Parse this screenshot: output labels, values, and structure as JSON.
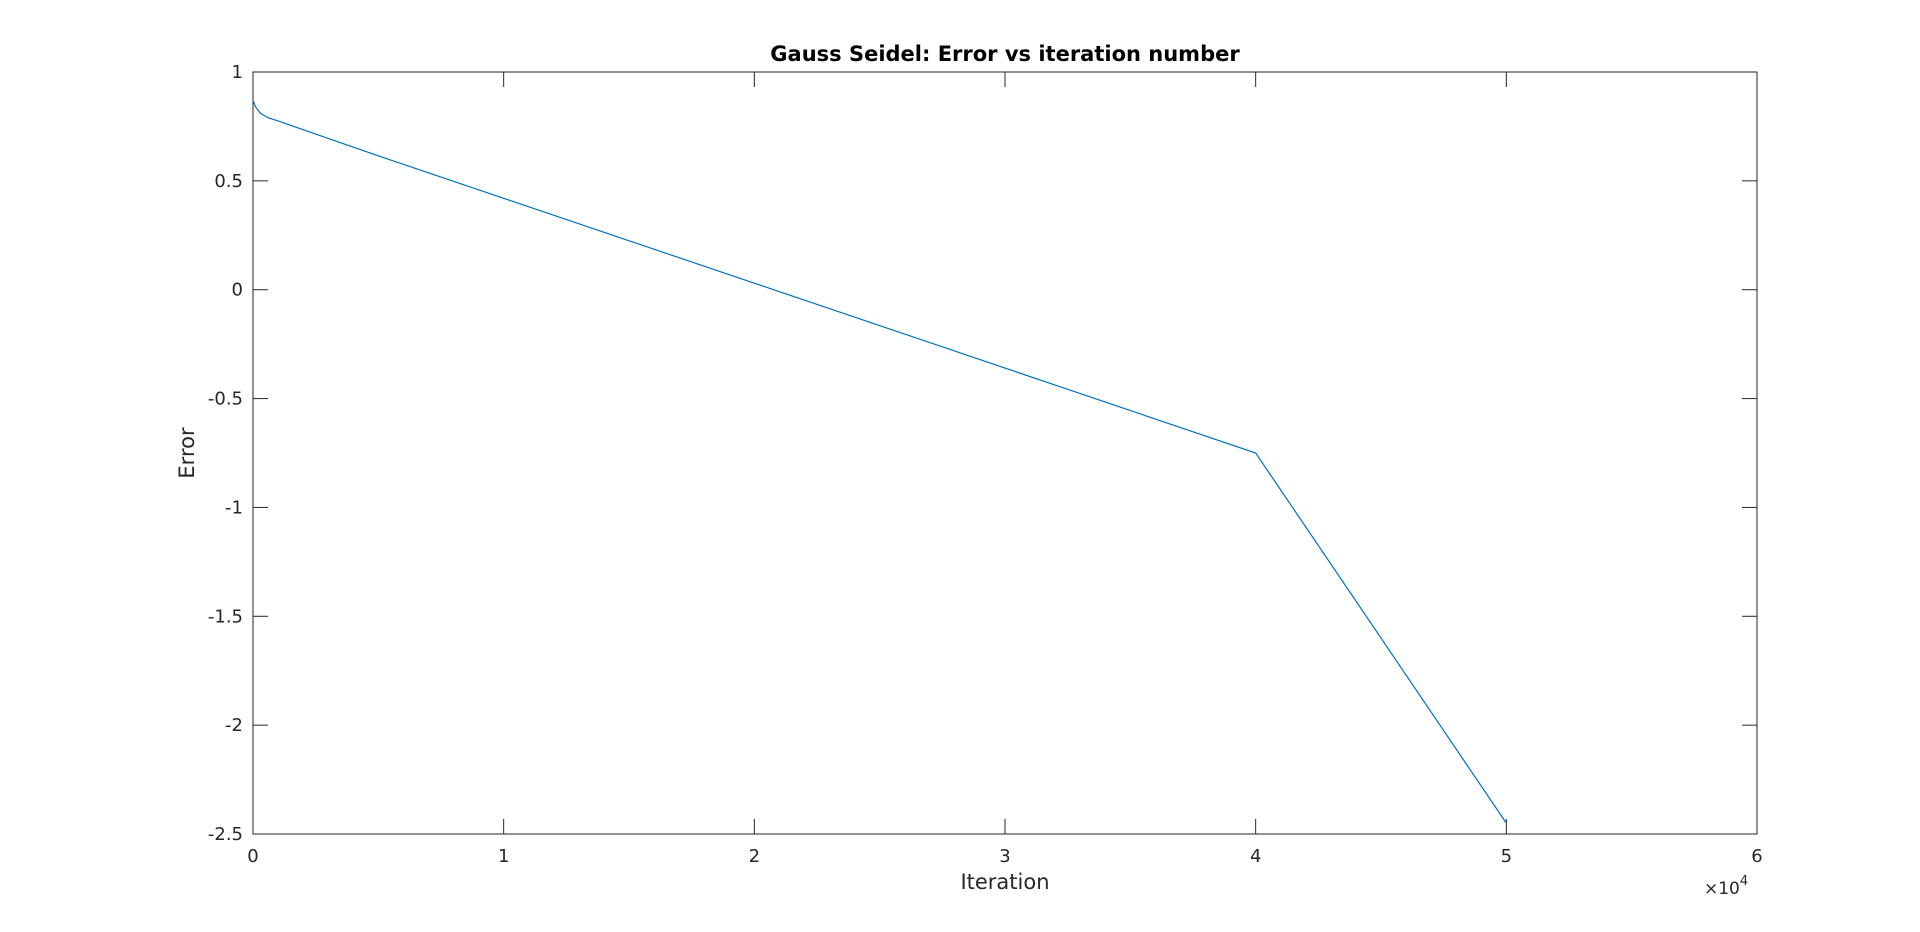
{
  "chart_data": {
    "type": "line",
    "title": "Gauss Seidel: Error vs iteration number",
    "xlabel": "Iteration",
    "ylabel": "Error",
    "xlim": [
      0,
      60000
    ],
    "ylim": [
      -2.5,
      1
    ],
    "x_tick_values": [
      0,
      10000,
      20000,
      30000,
      40000,
      50000,
      60000
    ],
    "x_tick_labels": [
      "0",
      "1",
      "2",
      "3",
      "4",
      "5",
      "6"
    ],
    "x_exponent_base": "×10",
    "x_exponent_power": "4",
    "y_tick_values": [
      1,
      0.5,
      0,
      -0.5,
      -1,
      -1.5,
      -2,
      -2.5
    ],
    "y_tick_labels": [
      "1",
      "0.5",
      "0",
      "-0.5",
      "-1",
      "-1.5",
      "-2",
      "-2.5"
    ],
    "grid": false,
    "line_color": "#0072BD",
    "series": [
      {
        "x": [
          0,
          100,
          300,
          600,
          1000,
          1500,
          2000,
          3000,
          5000,
          10000,
          20000,
          30000,
          40000,
          50000
        ],
        "values": [
          0.87,
          0.84,
          0.81,
          0.79,
          0.775,
          0.755,
          0.735,
          0.695,
          0.615,
          0.42,
          0.03,
          -0.36,
          -0.75,
          -2.45
        ]
      }
    ]
  }
}
